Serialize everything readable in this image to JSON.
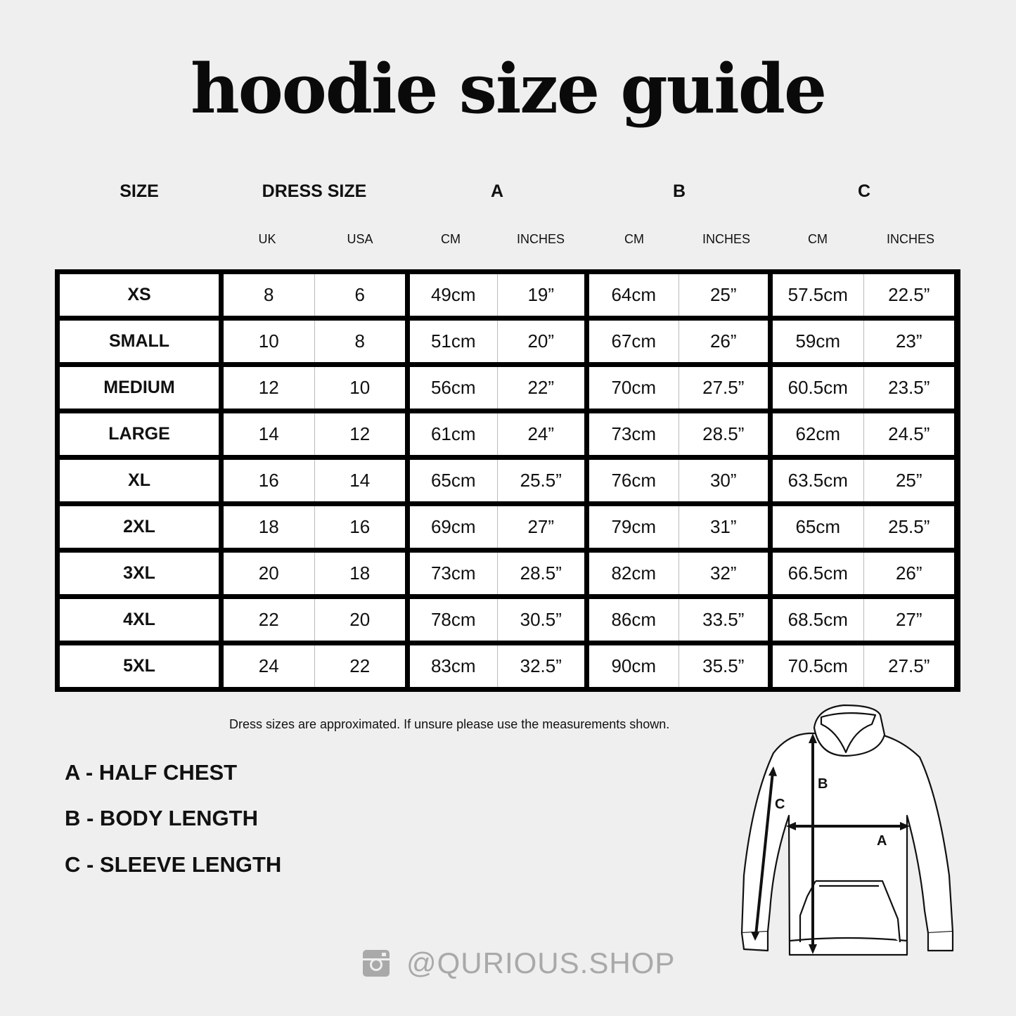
{
  "title": "hoodie size guide",
  "headers": {
    "size": "SIZE",
    "dress": "DRESS SIZE",
    "a": "A",
    "b": "B",
    "c": "C"
  },
  "subheaders": [
    "UK",
    "USA",
    "CM",
    "INCHES",
    "CM",
    "INCHES",
    "CM",
    "INCHES"
  ],
  "rows": [
    [
      "XS",
      "8",
      "6",
      "49cm",
      "19”",
      "64cm",
      "25”",
      "57.5cm",
      "22.5”"
    ],
    [
      "SMALL",
      "10",
      "8",
      "51cm",
      "20”",
      "67cm",
      "26”",
      "59cm",
      "23”"
    ],
    [
      "MEDIUM",
      "12",
      "10",
      "56cm",
      "22”",
      "70cm",
      "27.5”",
      "60.5cm",
      "23.5”"
    ],
    [
      "LARGE",
      "14",
      "12",
      "61cm",
      "24”",
      "73cm",
      "28.5”",
      "62cm",
      "24.5”"
    ],
    [
      "XL",
      "16",
      "14",
      "65cm",
      "25.5”",
      "76cm",
      "30”",
      "63.5cm",
      "25”"
    ],
    [
      "2XL",
      "18",
      "16",
      "69cm",
      "27”",
      "79cm",
      "31”",
      "65cm",
      "25.5”"
    ],
    [
      "3XL",
      "20",
      "18",
      "73cm",
      "28.5”",
      "82cm",
      "32”",
      "66.5cm",
      "26”"
    ],
    [
      "4XL",
      "22",
      "20",
      "78cm",
      "30.5”",
      "86cm",
      "33.5”",
      "68.5cm",
      "27”"
    ],
    [
      "5XL",
      "24",
      "22",
      "83cm",
      "32.5”",
      "90cm",
      "35.5”",
      "70.5cm",
      "27.5”"
    ]
  ],
  "note": "Dress sizes are approximated. If unsure please use the measurements shown.",
  "legend": [
    "A - HALF CHEST",
    "B - BODY LENGTH",
    "C - SLEEVE LENGTH"
  ],
  "diagram_labels": {
    "a": "A",
    "b": "B",
    "c": "C"
  },
  "social": {
    "icon": "instagram-icon",
    "handle": "@QURIOUS.SHOP"
  },
  "colors": {
    "background": "#efefef",
    "table_border": "#000000",
    "handle": "#a9a9a9"
  }
}
